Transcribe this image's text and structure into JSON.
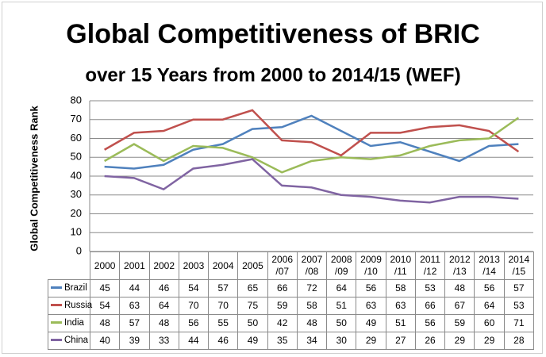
{
  "chart_data": {
    "type": "line",
    "title": "Global Competitiveness of BRIC",
    "subtitle": "over 15 Years from 2000 to 2014/15 (WEF)",
    "y_label": "Global Competitiveness Rank",
    "categories": [
      "2000",
      "2001",
      "2002",
      "2003",
      "2004",
      "2005",
      "2006 /07",
      "2007 /08",
      "2008 /09",
      "2009 /10",
      "2010 /11",
      "2011 /12",
      "2012 /13",
      "2013 /14",
      "2014 /15"
    ],
    "series": [
      {
        "name": "Brazil",
        "color": "#4f81bd",
        "values": [
          45,
          44,
          46,
          54,
          57,
          65,
          66,
          72,
          64,
          56,
          58,
          53,
          48,
          56,
          57
        ]
      },
      {
        "name": "Russia",
        "color": "#c0504d",
        "values": [
          54,
          63,
          64,
          70,
          70,
          75,
          59,
          58,
          51,
          63,
          63,
          66,
          67,
          64,
          53
        ]
      },
      {
        "name": "India",
        "color": "#9bbb59",
        "values": [
          48,
          57,
          48,
          56,
          55,
          50,
          42,
          48,
          50,
          49,
          51,
          56,
          59,
          60,
          71
        ]
      },
      {
        "name": "China",
        "color": "#8064a2",
        "values": [
          40,
          39,
          33,
          44,
          46,
          49,
          35,
          34,
          30,
          29,
          27,
          26,
          29,
          29,
          28
        ]
      }
    ],
    "ylim": [
      0,
      80
    ],
    "yticks": [
      0,
      10,
      20,
      30,
      40,
      50,
      60,
      70,
      80
    ],
    "grid": true,
    "data_table": true
  }
}
